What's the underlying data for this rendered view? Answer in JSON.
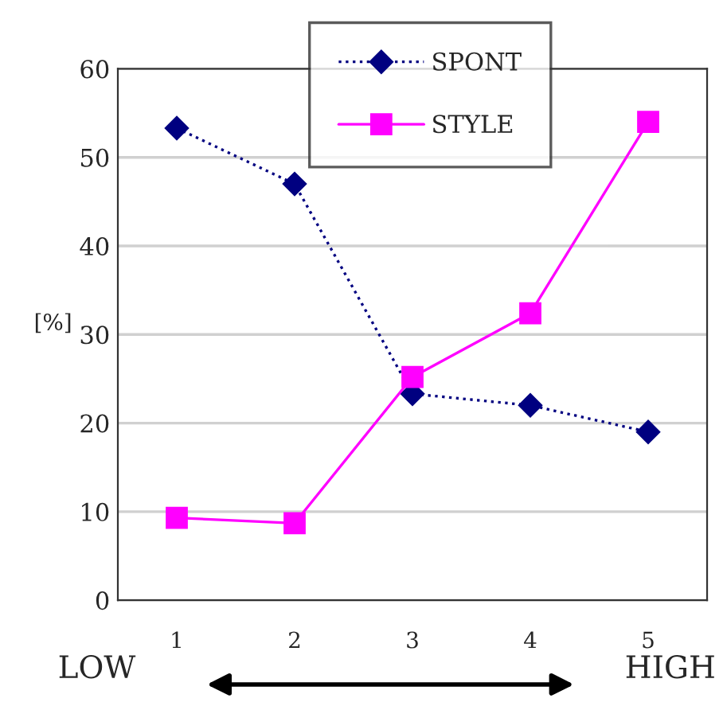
{
  "chart_data": {
    "type": "line",
    "ylabel": "[%]",
    "categories": [
      "1",
      "2",
      "3",
      "4",
      "5"
    ],
    "series": [
      {
        "name": "SPONT",
        "color": "#000080",
        "values": [
          53.3,
          47,
          23.3,
          22,
          19
        ],
        "marker": "diamond",
        "line_style": "dotted"
      },
      {
        "name": "STYLE",
        "color": "#ff00ff",
        "values": [
          9.3,
          8.7,
          25.2,
          32.4,
          54
        ],
        "marker": "square",
        "line_style": "solid"
      }
    ],
    "ylim": [
      0,
      60
    ],
    "yticks": [
      0,
      10,
      20,
      30,
      40,
      50,
      60
    ],
    "grid": "y",
    "legend": "top",
    "annotations": [
      "LOW",
      "HIGH"
    ]
  }
}
